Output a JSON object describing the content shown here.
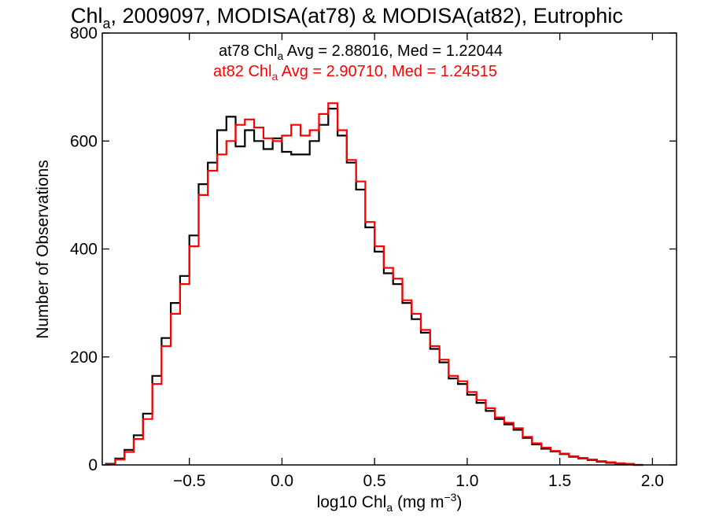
{
  "chart_data": {
    "type": "line",
    "title": {
      "prefix": "Chl",
      "sub": "a",
      "rest": ", 2009097, MODISA(at78) & MODISA(at82), Eutrophic"
    },
    "xlabel": {
      "prefix": "log10 Chl",
      "sub": "a",
      "mid": " (mg m",
      "sup": "−3",
      "suffix": ")"
    },
    "ylabel": "Number of Observations",
    "xlim": [
      -0.97,
      2.13
    ],
    "ylim": [
      0,
      800
    ],
    "xticks": [
      -0.5,
      0.0,
      0.5,
      1.0,
      1.5,
      2.0
    ],
    "xtick_labels": [
      "−0.5",
      "0.0",
      "0.5",
      "1.0",
      "1.5",
      "2.0"
    ],
    "yticks": [
      0,
      200,
      400,
      600,
      800
    ],
    "ytick_labels": [
      "0",
      "200",
      "400",
      "600",
      "800"
    ],
    "grid": false,
    "legend": [
      {
        "prefix": "at78 Chl",
        "sub": "a",
        "rest": " Avg = 2.88016, Med = 1.22044",
        "color": "#000000"
      },
      {
        "prefix": "at82 Chl",
        "sub": "a",
        "rest": " Avg = 2.90710, Med = 1.24515",
        "color": "#ff0000"
      }
    ],
    "series": [
      {
        "color": "#000000",
        "points": [
          [
            -0.95,
            2
          ],
          [
            -0.9,
            12
          ],
          [
            -0.85,
            28
          ],
          [
            -0.8,
            55
          ],
          [
            -0.75,
            95
          ],
          [
            -0.7,
            165
          ],
          [
            -0.65,
            235
          ],
          [
            -0.6,
            300
          ],
          [
            -0.55,
            350
          ],
          [
            -0.5,
            425
          ],
          [
            -0.45,
            520
          ],
          [
            -0.4,
            560
          ],
          [
            -0.35,
            620
          ],
          [
            -0.3,
            645
          ],
          [
            -0.25,
            590
          ],
          [
            -0.2,
            620
          ],
          [
            -0.15,
            600
          ],
          [
            -0.1,
            585
          ],
          [
            -0.05,
            605
          ],
          [
            0.0,
            580
          ],
          [
            0.05,
            575
          ],
          [
            0.1,
            575
          ],
          [
            0.15,
            600
          ],
          [
            0.2,
            630
          ],
          [
            0.25,
            660
          ],
          [
            0.3,
            610
          ],
          [
            0.35,
            560
          ],
          [
            0.4,
            510
          ],
          [
            0.45,
            440
          ],
          [
            0.5,
            395
          ],
          [
            0.55,
            355
          ],
          [
            0.6,
            335
          ],
          [
            0.65,
            300
          ],
          [
            0.7,
            270
          ],
          [
            0.75,
            245
          ],
          [
            0.8,
            215
          ],
          [
            0.85,
            190
          ],
          [
            0.9,
            160
          ],
          [
            0.95,
            150
          ],
          [
            1.0,
            130
          ],
          [
            1.05,
            115
          ],
          [
            1.1,
            100
          ],
          [
            1.15,
            85
          ],
          [
            1.2,
            75
          ],
          [
            1.25,
            65
          ],
          [
            1.3,
            50
          ],
          [
            1.35,
            38
          ],
          [
            1.4,
            30
          ],
          [
            1.45,
            25
          ],
          [
            1.5,
            20
          ],
          [
            1.55,
            15
          ],
          [
            1.6,
            12
          ],
          [
            1.65,
            9
          ],
          [
            1.7,
            6
          ],
          [
            1.75,
            4
          ],
          [
            1.8,
            2
          ],
          [
            1.85,
            1
          ],
          [
            1.9,
            0
          ]
        ]
      },
      {
        "color": "#ff0000",
        "points": [
          [
            -0.95,
            1
          ],
          [
            -0.9,
            10
          ],
          [
            -0.85,
            24
          ],
          [
            -0.8,
            48
          ],
          [
            -0.75,
            85
          ],
          [
            -0.7,
            150
          ],
          [
            -0.65,
            220
          ],
          [
            -0.6,
            280
          ],
          [
            -0.55,
            335
          ],
          [
            -0.5,
            405
          ],
          [
            -0.45,
            500
          ],
          [
            -0.4,
            545
          ],
          [
            -0.35,
            575
          ],
          [
            -0.3,
            600
          ],
          [
            -0.25,
            630
          ],
          [
            -0.2,
            640
          ],
          [
            -0.15,
            625
          ],
          [
            -0.1,
            605
          ],
          [
            -0.05,
            600
          ],
          [
            0.0,
            610
          ],
          [
            0.05,
            630
          ],
          [
            0.1,
            610
          ],
          [
            0.15,
            620
          ],
          [
            0.2,
            650
          ],
          [
            0.25,
            670
          ],
          [
            0.3,
            620
          ],
          [
            0.35,
            565
          ],
          [
            0.4,
            525
          ],
          [
            0.45,
            450
          ],
          [
            0.5,
            405
          ],
          [
            0.55,
            365
          ],
          [
            0.6,
            345
          ],
          [
            0.65,
            305
          ],
          [
            0.7,
            280
          ],
          [
            0.75,
            250
          ],
          [
            0.8,
            220
          ],
          [
            0.85,
            195
          ],
          [
            0.9,
            165
          ],
          [
            0.95,
            155
          ],
          [
            1.0,
            135
          ],
          [
            1.05,
            120
          ],
          [
            1.1,
            105
          ],
          [
            1.15,
            88
          ],
          [
            1.2,
            78
          ],
          [
            1.25,
            68
          ],
          [
            1.3,
            52
          ],
          [
            1.35,
            40
          ],
          [
            1.4,
            32
          ],
          [
            1.45,
            26
          ],
          [
            1.5,
            21
          ],
          [
            1.55,
            16
          ],
          [
            1.6,
            13
          ],
          [
            1.65,
            10
          ],
          [
            1.7,
            7
          ],
          [
            1.75,
            5
          ],
          [
            1.8,
            3
          ],
          [
            1.85,
            2
          ],
          [
            1.9,
            0
          ]
        ]
      }
    ]
  }
}
